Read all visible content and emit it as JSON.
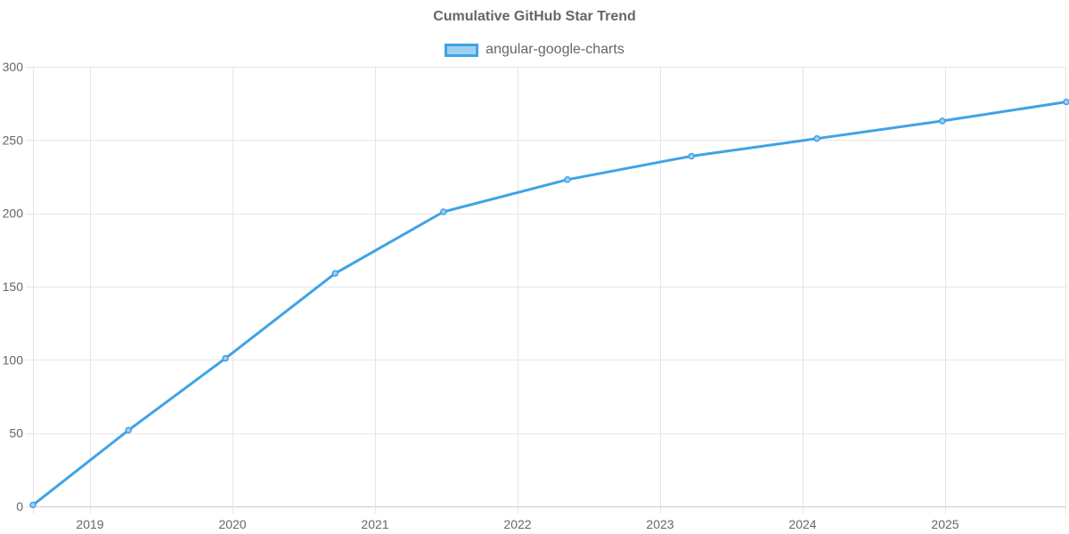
{
  "chart_data": {
    "type": "line",
    "title": "Cumulative GitHub Star Trend",
    "xlabel": "",
    "ylabel": "",
    "ylim": [
      0,
      300
    ],
    "xlim": [
      2018.6,
      2025.85
    ],
    "y_ticks": [
      0,
      50,
      100,
      150,
      200,
      250,
      300
    ],
    "x_ticks": [
      2019,
      2020,
      2021,
      2022,
      2023,
      2024,
      2025
    ],
    "x_tick_labels": [
      "2019",
      "2020",
      "2021",
      "2022",
      "2023",
      "2024",
      "2025"
    ],
    "grid": true,
    "legend_position": "top-center",
    "series": [
      {
        "name": "angular-google-charts",
        "color": "#3fa3e6",
        "fill": "#9ecff3",
        "x": [
          2018.6,
          2019.27,
          2019.95,
          2020.72,
          2021.48,
          2022.35,
          2023.22,
          2024.1,
          2024.98,
          2025.85
        ],
        "values": [
          1,
          52,
          101,
          159,
          201,
          223,
          239,
          251,
          263,
          276
        ]
      }
    ]
  }
}
